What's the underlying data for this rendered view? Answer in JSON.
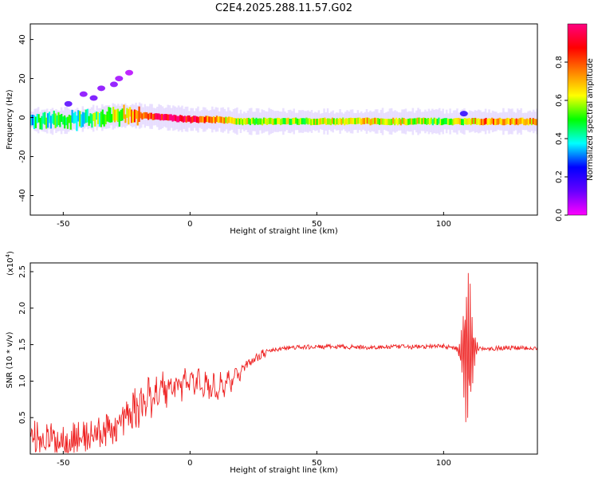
{
  "figure_title": "C2E4.2025.288.11.57.G02",
  "chart_data": [
    {
      "type": "heatmap",
      "xlabel": "Height of straight line (km)",
      "ylabel": "Frequency (Hz)",
      "xlim": [
        -63,
        137
      ],
      "ylim": [
        -50,
        48
      ],
      "xticks": [
        "-50",
        "0",
        "50",
        "100"
      ],
      "xtick_values": [
        -50,
        0,
        50,
        100
      ],
      "yticks": [
        "-40",
        "-20",
        "0",
        "20",
        "40"
      ],
      "ytick_values": [
        -40,
        -20,
        0,
        20,
        40
      ],
      "colorbar": {
        "label": "Normalized spectral amplitude",
        "ticks": [
          "0.0",
          "0.2",
          "0.4",
          "0.6",
          "0.8"
        ],
        "tick_values": [
          0,
          0.2,
          0.4,
          0.6,
          0.8
        ],
        "colormap": [
          "#ff00ff",
          "#6600ff",
          "#0000ff",
          "#00ffff",
          "#00ff00",
          "#ffff00",
          "#ff8000",
          "#ff0000",
          "#ff0080"
        ]
      },
      "ridge": {
        "heights_km": [
          -63,
          -55,
          -45,
          -35,
          -28,
          -20,
          -10,
          0,
          10,
          20,
          30,
          50,
          70,
          90,
          100,
          108,
          115,
          137
        ],
        "freq_hz": [
          -1,
          -2,
          -1,
          0,
          1,
          1,
          0,
          -1,
          -1,
          -2,
          -2,
          -2,
          -2,
          -2,
          -2,
          -2,
          -2,
          -2
        ],
        "amplitude": [
          0.4,
          0.45,
          0.45,
          0.5,
          0.6,
          0.8,
          0.95,
          0.9,
          0.7,
          0.6,
          0.55,
          0.6,
          0.65,
          0.6,
          0.5,
          0.6,
          0.75,
          0.7
        ]
      },
      "scattered_blobs": [
        {
          "x": -48,
          "y": 7,
          "amp": 0.15
        },
        {
          "x": -42,
          "y": 12,
          "amp": 0.1
        },
        {
          "x": -38,
          "y": 10,
          "amp": 0.12
        },
        {
          "x": -35,
          "y": 15,
          "amp": 0.1
        },
        {
          "x": -30,
          "y": 17,
          "amp": 0.1
        },
        {
          "x": -28,
          "y": 20,
          "amp": 0.08
        },
        {
          "x": -24,
          "y": 23,
          "amp": 0.06
        },
        {
          "x": 108,
          "y": 2,
          "amp": 0.2
        }
      ]
    },
    {
      "type": "line",
      "xlabel": "Height of straight line (km)",
      "ylabel": "SNR (10 * v/v)",
      "scale_label": "(x10",
      "scale_exp": "4",
      "xlim": [
        -63,
        137
      ],
      "ylim": [
        0,
        2.62
      ],
      "xticks": [
        "-50",
        "0",
        "50",
        "100"
      ],
      "xtick_values": [
        -50,
        0,
        50,
        100
      ],
      "yticks": [
        "0.5",
        "1.0",
        "1.5",
        "2.0",
        "2.5"
      ],
      "ytick_values": [
        0.5,
        1.0,
        1.5,
        2.0,
        2.5
      ],
      "series": [
        {
          "color": "#ee2222",
          "x": [
            -63,
            -55,
            -50,
            -45,
            -40,
            -35,
            -30,
            -25,
            -20,
            -15,
            -10,
            -5,
            0,
            5,
            10,
            15,
            20,
            25,
            30,
            35,
            40,
            50,
            60,
            70,
            80,
            90,
            100,
            105,
            107,
            110,
            112,
            115,
            120,
            130,
            137
          ],
          "y": [
            0.25,
            0.2,
            0.2,
            0.22,
            0.25,
            0.3,
            0.35,
            0.5,
            0.65,
            0.8,
            0.9,
            0.95,
            1.0,
            0.95,
            0.9,
            1.0,
            1.15,
            1.3,
            1.4,
            1.44,
            1.46,
            1.47,
            1.47,
            1.46,
            1.47,
            1.47,
            1.48,
            1.45,
            1.4,
            1.42,
            1.45,
            1.45,
            1.45,
            1.46,
            1.45
          ]
        }
      ]
    }
  ]
}
